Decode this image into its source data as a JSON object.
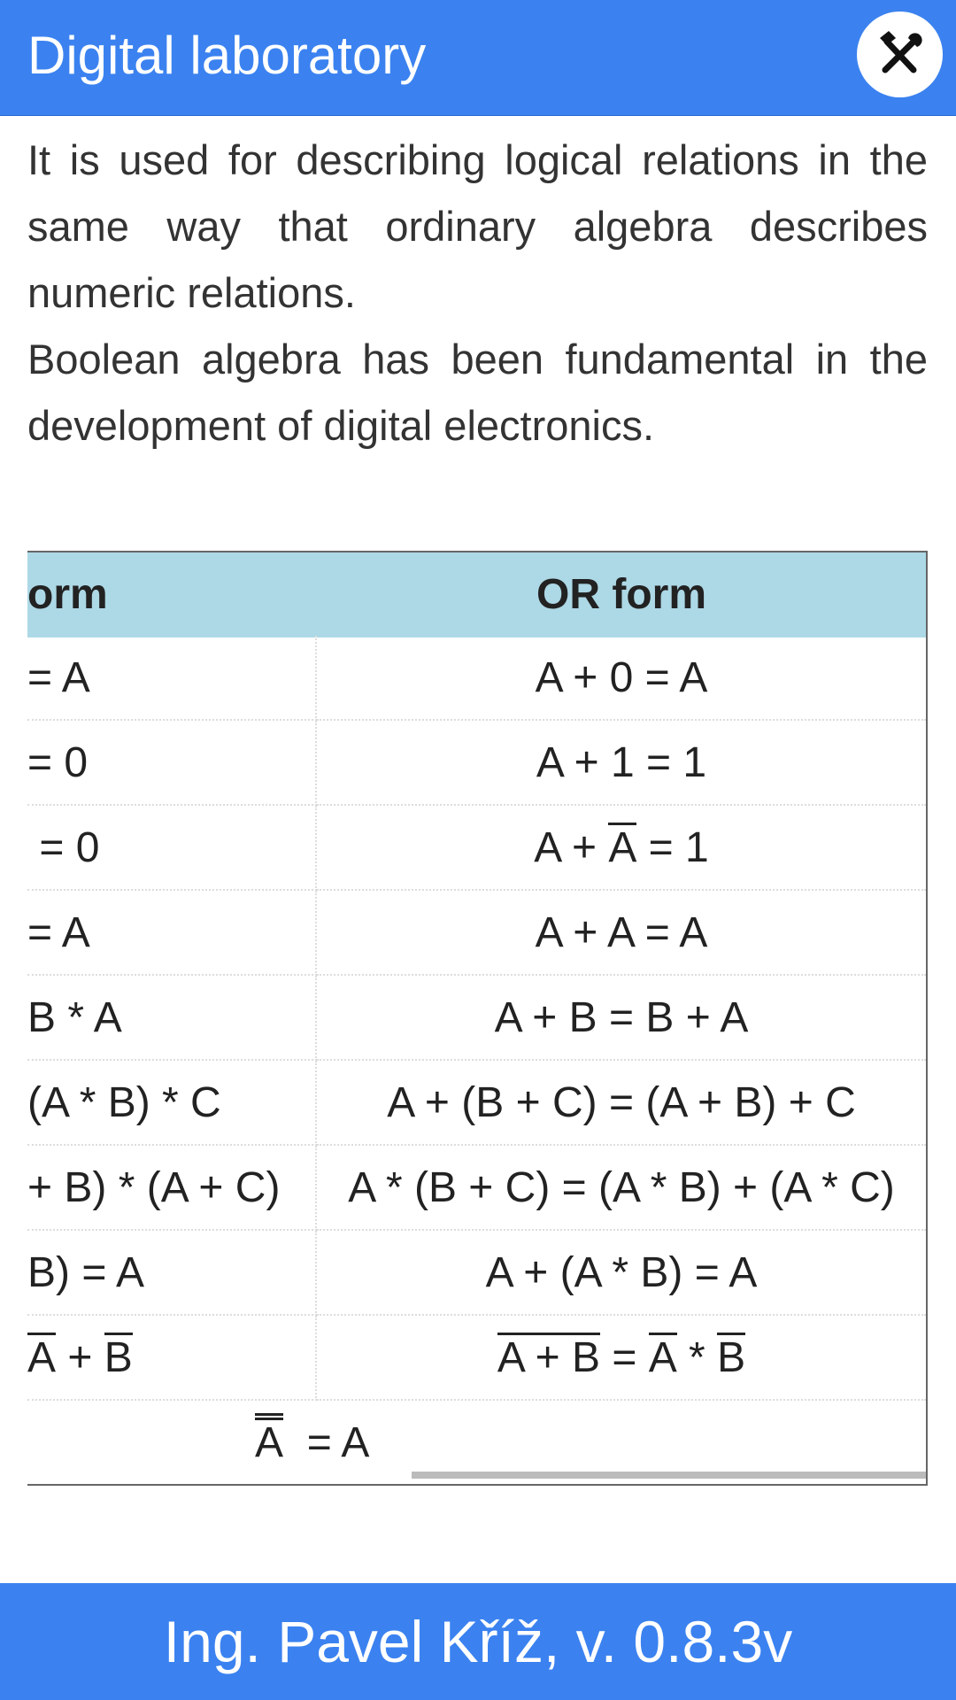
{
  "header": {
    "title": "Digital laboratory"
  },
  "paragraphs": [
    "It is used for describing logical relations in the same way that ordinary algebra describes numeric relations.",
    "Boolean algebra has been fundamental in the development of digital electronics."
  ],
  "table": {
    "head": [
      [
        {
          "t": "orm"
        }
      ],
      [
        {
          "t": "OR form"
        }
      ]
    ],
    "rows": [
      [
        [
          {
            "t": "= A"
          }
        ],
        [
          {
            "t": "A + 0 = A"
          }
        ]
      ],
      [
        [
          {
            "t": "= 0"
          }
        ],
        [
          {
            "t": "A + 1 = 1"
          }
        ]
      ],
      [
        [
          {
            "t": " = 0"
          }
        ],
        [
          {
            "t": "A + "
          },
          {
            "t": "A",
            "bars": 1
          },
          {
            "t": " = 1"
          }
        ]
      ],
      [
        [
          {
            "t": "= A"
          }
        ],
        [
          {
            "t": "A + A = A"
          }
        ]
      ],
      [
        [
          {
            "t": "B * A"
          }
        ],
        [
          {
            "t": "A + B = B + A"
          }
        ]
      ],
      [
        [
          {
            "t": "(A * B) * C"
          }
        ],
        [
          {
            "t": "A + (B + C) = (A + B) + C"
          }
        ]
      ],
      [
        [
          {
            "t": "+ B) * (A + C)"
          }
        ],
        [
          {
            "t": "A * (B + C) = (A * B) + (A * C)"
          }
        ]
      ],
      [
        [
          {
            "t": "B) = A"
          }
        ],
        [
          {
            "t": "A + (A * B) = A"
          }
        ]
      ],
      [
        [
          {
            "t": "A",
            "bars": 1
          },
          {
            "t": " + "
          },
          {
            "t": "B",
            "bars": 1
          }
        ],
        [
          {
            "t": "A + B",
            "bars": 1
          },
          {
            "t": " = "
          },
          {
            "t": "A",
            "bars": 1
          },
          {
            "t": " * "
          },
          {
            "t": "B",
            "bars": 1
          }
        ]
      ]
    ],
    "last_row": [
      {
        "t": "A",
        "bars": 2
      },
      {
        "t": "  = A"
      }
    ]
  },
  "footer": {
    "text": "Ing. Pavel Kříž, v. 0.8.3v"
  }
}
